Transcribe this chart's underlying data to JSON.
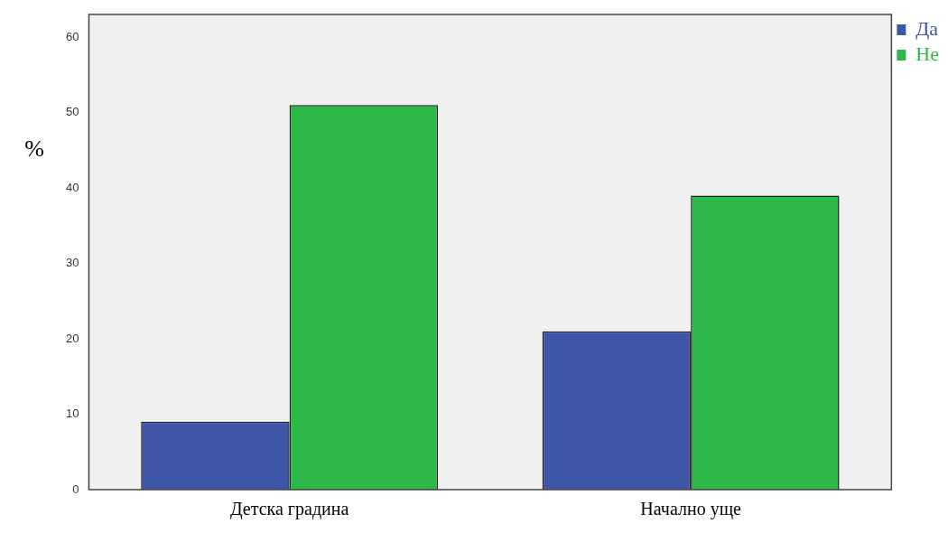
{
  "chart_data": {
    "type": "bar",
    "ylabel": "%",
    "categories": [
      "Детска градина",
      "Начално уще"
    ],
    "series": [
      {
        "name": "Да",
        "color": "#3d56a8",
        "values": [
          9,
          21
        ]
      },
      {
        "name": "Не",
        "color": "#2db84a",
        "values": [
          51,
          39
        ]
      }
    ],
    "ylim": [
      0,
      63
    ],
    "yticks": [
      0,
      10,
      20,
      30,
      40,
      50,
      60
    ],
    "grid": false,
    "legend": "top right"
  }
}
